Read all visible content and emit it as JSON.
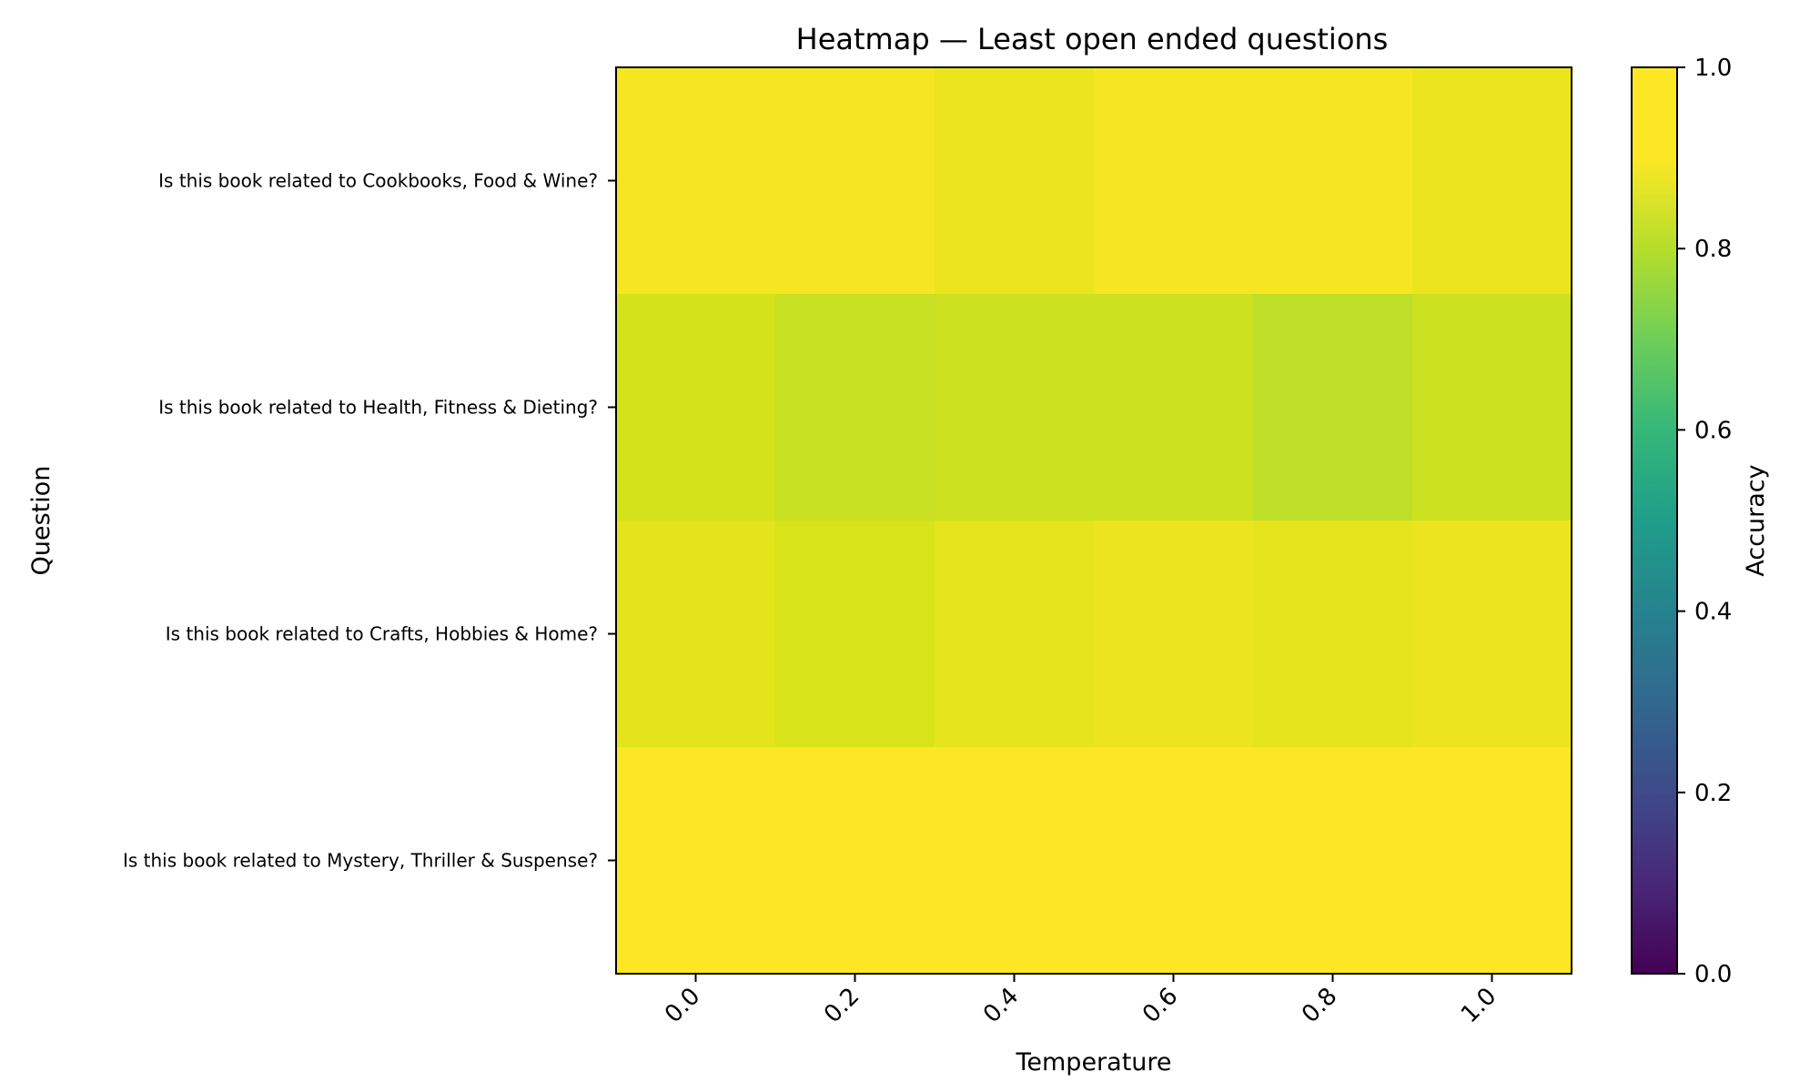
{
  "chart_data": {
    "type": "heatmap",
    "title": "Heatmap — Least open ended questions",
    "xlabel": "Temperature",
    "ylabel": "Question",
    "x": [
      "0.0",
      "0.2",
      "0.4",
      "0.6",
      "0.8",
      "1.0"
    ],
    "y": [
      "Is this book related to Cookbooks, Food & Wine?",
      "Is this book related to Health, Fitness & Dieting?",
      "Is this book related to Crafts, Hobbies & Home?",
      "Is this book related to Mystery, Thriller & Suspense?"
    ],
    "values": [
      [
        0.98,
        0.98,
        0.95,
        0.98,
        0.98,
        0.95
      ],
      [
        0.88,
        0.85,
        0.86,
        0.86,
        0.82,
        0.86
      ],
      [
        0.92,
        0.89,
        0.93,
        0.95,
        0.93,
        0.95
      ],
      [
        1.0,
        1.0,
        1.0,
        1.0,
        1.0,
        1.0
      ]
    ],
    "colorbar": {
      "label": "Accuracy",
      "range": [
        0.0,
        1.0
      ],
      "ticks": [
        "0.0",
        "0.2",
        "0.4",
        "0.6",
        "0.8",
        "1.0"
      ],
      "colormap": "viridis"
    }
  }
}
